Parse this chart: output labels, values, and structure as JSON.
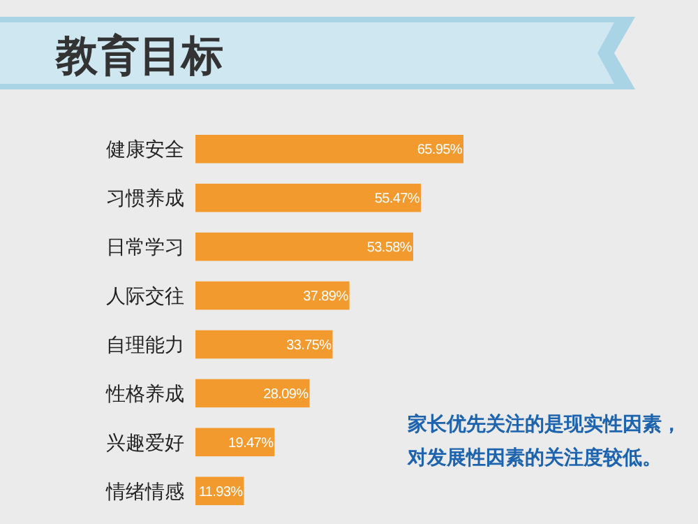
{
  "chart_data": {
    "type": "bar",
    "orientation": "horizontal",
    "title": "教育目标",
    "categories": [
      "健康安全",
      "习惯养成",
      "日常学习",
      "人际交往",
      "自理能力",
      "性格养成",
      "兴趣爱好",
      "情绪情感"
    ],
    "values": [
      65.95,
      55.47,
      53.58,
      37.89,
      33.75,
      28.09,
      19.47,
      11.93
    ],
    "value_labels": [
      "65.95%",
      "55.47%",
      "53.58%",
      "37.89%",
      "33.75%",
      "28.09%",
      "19.47%",
      "11.93%"
    ],
    "color": "#f39a2e",
    "annotations": [
      "家长优先关注的是现实性因素，",
      "对发展性因素的关注度较低。"
    ]
  }
}
